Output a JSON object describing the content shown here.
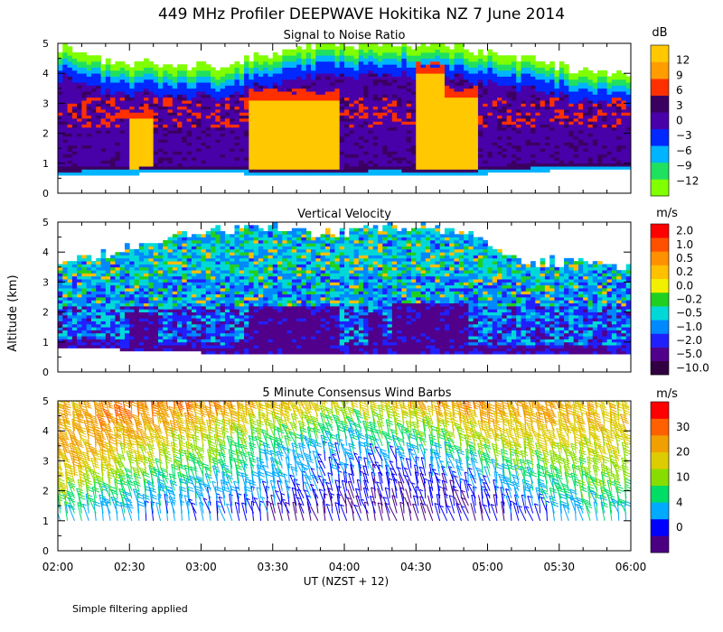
{
  "title": "449 MHz Profiler DEEPWAVE Hokitika NZ   7 June 2014",
  "ylabel": "Altitude (km)",
  "xlabel": "UT   (NZST + 12)",
  "footnote": "Simple filtering applied",
  "xticks": [
    "02:00",
    "02:30",
    "03:00",
    "03:30",
    "04:00",
    "04:30",
    "05:00",
    "05:30",
    "06:00"
  ],
  "yticks": [
    "0",
    "1",
    "2",
    "3",
    "4",
    "5"
  ],
  "colors": {
    "snr": [
      "#80ff00",
      "#20e060",
      "#00b4ff",
      "#0028ff",
      "#4800a8",
      "#3a0060",
      "#ff3000",
      "#ff9c00",
      "#ffc800"
    ],
    "vel": [
      "#300040",
      "#50008a",
      "#2020ff",
      "#0088ff",
      "#00d8d8",
      "#20d020",
      "#f0f000",
      "#ffc000",
      "#ff9000",
      "#ff5000",
      "#ff0000"
    ],
    "wind": [
      "#4b0082",
      "#0000ff",
      "#00aaff",
      "#00dd66",
      "#88dd00",
      "#ddcc00",
      "#f0a000",
      "#ff6000",
      "#ff0000"
    ]
  },
  "chart_data": [
    {
      "type": "heatmap",
      "title": "Signal to Noise Ratio",
      "unit": "dB",
      "x_range": [
        "02:00",
        "06:00"
      ],
      "ylim": [
        0,
        5
      ],
      "colorbar_labels": [
        "12",
        "9",
        "6",
        "3",
        "0",
        "−3",
        "−6",
        "−9",
        "−12"
      ],
      "colorbar_values": [
        -12,
        -9,
        -6,
        -3,
        0,
        3,
        6,
        9,
        12
      ],
      "signal_top_km": [
        4.9,
        4.5,
        4.3,
        4.2,
        4.2,
        4.6,
        4.9,
        4.9,
        5.0,
        5.0,
        4.8,
        4.6,
        4.3,
        4.1,
        4.0
      ],
      "signal_base_km": [
        0.6,
        0.65,
        0.65,
        0.7,
        0.7,
        0.6,
        0.6,
        0.6,
        0.65,
        0.6,
        0.6,
        0.7,
        0.75,
        0.8,
        0.8
      ],
      "high_snr_columns": [
        {
          "start": "02:30",
          "end": "02:40",
          "top_km": 2.8
        },
        {
          "start": "03:20",
          "end": "03:58",
          "top_km": 3.4
        },
        {
          "start": "04:30",
          "end": "04:42",
          "top_km": 4.3
        },
        {
          "start": "04:42",
          "end": "04:56",
          "top_km": 3.5
        }
      ]
    },
    {
      "type": "heatmap",
      "title": "Vertical Velocity",
      "unit": "m/s",
      "x_range": [
        "02:00",
        "06:00"
      ],
      "ylim": [
        0,
        5
      ],
      "colorbar_labels": [
        "2.0",
        "1.0",
        "0.5",
        "0.2",
        "0.0",
        "−0.2",
        "−0.5",
        "−1.0",
        "−2.0",
        "−5.0",
        "−10.0"
      ],
      "colorbar_values": [
        -10.0,
        -5.0,
        -2.0,
        -1.0,
        -0.5,
        -0.2,
        0.0,
        0.2,
        0.5,
        1.0,
        2.0
      ],
      "data_top_km": [
        3.7,
        3.9,
        4.2,
        4.6,
        4.7,
        4.8,
        4.7,
        4.6,
        4.8,
        4.9,
        4.6,
        3.8,
        3.7,
        3.6,
        3.5
      ],
      "data_base_km": [
        0.8,
        0.8,
        0.7,
        0.7,
        0.6,
        0.6,
        0.6,
        0.6,
        0.6,
        0.6,
        0.6,
        0.6,
        0.6,
        0.6,
        0.6
      ],
      "strong_downdraft_columns": [
        {
          "start": "02:30",
          "end": "02:42",
          "top_km": 2.0
        },
        {
          "start": "03:20",
          "end": "03:58",
          "top_km": 2.2
        },
        {
          "start": "04:10",
          "end": "04:15",
          "top_km": 2.0
        },
        {
          "start": "04:20",
          "end": "04:52",
          "top_km": 2.3
        }
      ]
    },
    {
      "type": "wind_barbs",
      "title": "5 Minute Consensus Wind Barbs",
      "unit": "m/s",
      "x_range": [
        "02:00",
        "06:00"
      ],
      "ylim": [
        0,
        5
      ],
      "colorbar_labels": [
        "30",
        "20",
        "10",
        "4",
        "0"
      ],
      "colorbar_values": [
        0,
        4,
        10,
        20,
        30
      ],
      "heights_km": [
        1.0,
        1.5,
        2.0,
        2.5,
        3.0,
        3.5,
        4.0,
        4.5,
        5.0
      ],
      "times": [
        "02:00",
        "02:30",
        "03:00",
        "03:30",
        "04:00",
        "04:30",
        "05:00",
        "05:30",
        "06:00"
      ],
      "speed_ms": [
        [
          10,
          8,
          6,
          4,
          3,
          2,
          4,
          8,
          10
        ],
        [
          14,
          10,
          8,
          6,
          4,
          3,
          5,
          10,
          12
        ],
        [
          18,
          12,
          10,
          7,
          5,
          4,
          7,
          12,
          14
        ],
        [
          20,
          16,
          12,
          9,
          6,
          5,
          10,
          14,
          16
        ],
        [
          22,
          18,
          15,
          11,
          7,
          8,
          14,
          16,
          18
        ],
        [
          22,
          20,
          17,
          13,
          9,
          12,
          18,
          18,
          18
        ],
        [
          21,
          22,
          20,
          16,
          12,
          16,
          20,
          20,
          18
        ],
        [
          20,
          24,
          22,
          20,
          16,
          20,
          22,
          20,
          18
        ],
        [
          20,
          26,
          24,
          22,
          20,
          24,
          22,
          20,
          18
        ]
      ]
    }
  ]
}
